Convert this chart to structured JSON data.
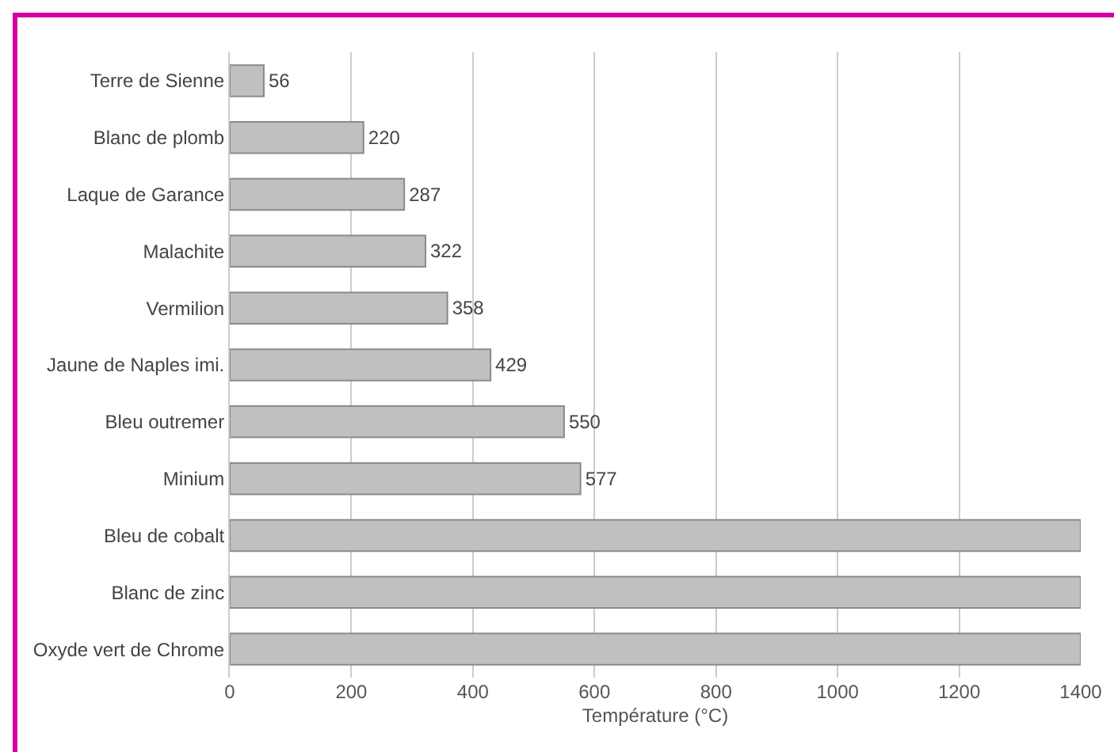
{
  "chart_data": {
    "type": "bar",
    "orientation": "horizontal",
    "xlabel": "Température (°C)",
    "categories": [
      "Terre de Sienne",
      "Blanc de plomb",
      "Laque de Garance",
      "Malachite",
      "Vermilion",
      "Jaune de Naples imi.",
      "Bleu outremer",
      "Minium",
      "Bleu de cobalt",
      "Blanc de zinc",
      "Oxyde vert de Chrome"
    ],
    "values": [
      56,
      220,
      287,
      322,
      358,
      429,
      550,
      577,
      1400,
      1400,
      1400
    ],
    "value_labels": [
      "56",
      "220",
      "287",
      "322",
      "358",
      "429",
      "550",
      "577",
      null,
      null,
      null
    ],
    "color": "#c0c0c0",
    "xlim": [
      0,
      1400
    ],
    "xticks": [
      0,
      200,
      400,
      600,
      800,
      1000,
      1200,
      1400
    ],
    "grid": "x"
  }
}
